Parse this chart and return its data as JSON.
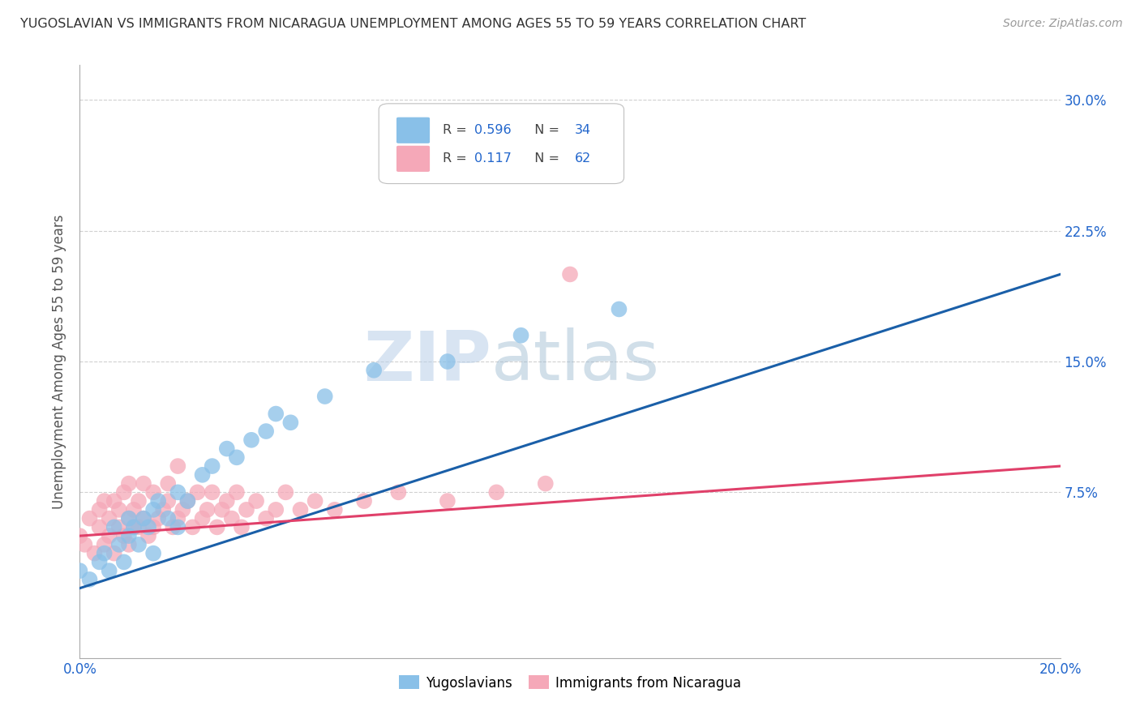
{
  "title": "YUGOSLAVIAN VS IMMIGRANTS FROM NICARAGUA UNEMPLOYMENT AMONG AGES 55 TO 59 YEARS CORRELATION CHART",
  "source": "Source: ZipAtlas.com",
  "ylabel": "Unemployment Among Ages 55 to 59 years",
  "xlabel_yugoslav": "Yugoslavians",
  "xlabel_nicaragua": "Immigrants from Nicaragua",
  "xlim": [
    0.0,
    0.2
  ],
  "ylim": [
    -0.02,
    0.32
  ],
  "yticks": [
    0.0,
    0.075,
    0.15,
    0.225,
    0.3
  ],
  "xticks": [
    0.0,
    0.2
  ],
  "grid_color": "#d0d0d0",
  "background_color": "#ffffff",
  "yugoslav_color": "#89c0e8",
  "nicaragua_color": "#f5a8b8",
  "yugoslav_line_color": "#1a5fa8",
  "nicaragua_line_color": "#e0406a",
  "legend_R_yugoslav": "0.596",
  "legend_N_yugoslav": "34",
  "legend_R_nicaragua": "0.117",
  "legend_N_nicaragua": "62",
  "watermark_zip": "ZIP",
  "watermark_atlas": "atlas",
  "yugoslav_x": [
    0.0,
    0.002,
    0.004,
    0.005,
    0.006,
    0.007,
    0.008,
    0.009,
    0.01,
    0.01,
    0.011,
    0.012,
    0.013,
    0.014,
    0.015,
    0.015,
    0.016,
    0.018,
    0.02,
    0.02,
    0.022,
    0.025,
    0.027,
    0.03,
    0.032,
    0.035,
    0.038,
    0.04,
    0.043,
    0.05,
    0.06,
    0.075,
    0.09,
    0.11
  ],
  "yugoslav_y": [
    0.03,
    0.025,
    0.035,
    0.04,
    0.03,
    0.055,
    0.045,
    0.035,
    0.05,
    0.06,
    0.055,
    0.045,
    0.06,
    0.055,
    0.04,
    0.065,
    0.07,
    0.06,
    0.055,
    0.075,
    0.07,
    0.085,
    0.09,
    0.1,
    0.095,
    0.105,
    0.11,
    0.12,
    0.115,
    0.13,
    0.145,
    0.15,
    0.165,
    0.18
  ],
  "nicaragua_x": [
    0.0,
    0.001,
    0.002,
    0.003,
    0.004,
    0.004,
    0.005,
    0.005,
    0.006,
    0.006,
    0.007,
    0.007,
    0.008,
    0.008,
    0.009,
    0.009,
    0.01,
    0.01,
    0.01,
    0.011,
    0.011,
    0.012,
    0.012,
    0.013,
    0.013,
    0.014,
    0.015,
    0.015,
    0.016,
    0.017,
    0.018,
    0.018,
    0.019,
    0.02,
    0.02,
    0.021,
    0.022,
    0.023,
    0.024,
    0.025,
    0.026,
    0.027,
    0.028,
    0.029,
    0.03,
    0.031,
    0.032,
    0.033,
    0.034,
    0.036,
    0.038,
    0.04,
    0.042,
    0.045,
    0.048,
    0.052,
    0.058,
    0.065,
    0.075,
    0.085,
    0.095,
    0.1
  ],
  "nicaragua_y": [
    0.05,
    0.045,
    0.06,
    0.04,
    0.055,
    0.065,
    0.045,
    0.07,
    0.06,
    0.05,
    0.04,
    0.07,
    0.055,
    0.065,
    0.05,
    0.075,
    0.045,
    0.06,
    0.08,
    0.055,
    0.065,
    0.07,
    0.055,
    0.06,
    0.08,
    0.05,
    0.055,
    0.075,
    0.06,
    0.065,
    0.07,
    0.08,
    0.055,
    0.06,
    0.09,
    0.065,
    0.07,
    0.055,
    0.075,
    0.06,
    0.065,
    0.075,
    0.055,
    0.065,
    0.07,
    0.06,
    0.075,
    0.055,
    0.065,
    0.07,
    0.06,
    0.065,
    0.075,
    0.065,
    0.07,
    0.065,
    0.07,
    0.075,
    0.07,
    0.075,
    0.08,
    0.2
  ],
  "yugoslav_line_x0": 0.0,
  "yugoslav_line_y0": 0.02,
  "yugoslav_line_x1": 0.2,
  "yugoslav_line_y1": 0.2,
  "nicaragua_line_x0": 0.0,
  "nicaragua_line_y0": 0.05,
  "nicaragua_line_x1": 0.2,
  "nicaragua_line_y1": 0.09
}
